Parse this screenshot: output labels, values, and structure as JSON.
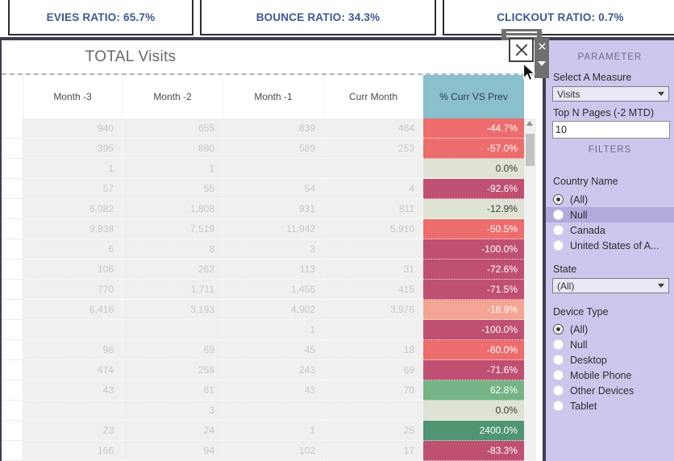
{
  "kpis": [
    {
      "label": "EVIES RATIO: 65.7%"
    },
    {
      "label": "BOUNCE RATIO: 34.3%"
    },
    {
      "label": "CLICKOUT RATIO: 0.7%"
    }
  ],
  "panel": {
    "title": "TOTAL Visits",
    "columns": [
      "Month -3",
      "Month -2",
      "Month -1",
      "Curr Month",
      "% Curr VS Prev"
    ],
    "rows": [
      {
        "m3": "940",
        "m2": "655",
        "m1": "839",
        "curr": "464",
        "pct": "-44.7%",
        "tone": "salmon"
      },
      {
        "m3": "395",
        "m2": "880",
        "m1": "589",
        "curr": "253",
        "pct": "-57.0%",
        "tone": "salmon"
      },
      {
        "m3": "1",
        "m2": "1",
        "m1": "",
        "curr": "",
        "pct": "0.0%",
        "tone": "sage"
      },
      {
        "m3": "57",
        "m2": "55",
        "m1": "54",
        "curr": "4",
        "pct": "-92.6%",
        "tone": "crimson"
      },
      {
        "m3": "6,082",
        "m2": "1,808",
        "m1": "931",
        "curr": "811",
        "pct": "-12.9%",
        "tone": "sage"
      },
      {
        "m3": "9,838",
        "m2": "7,519",
        "m1": "11,942",
        "curr": "5,910",
        "pct": "-50.5%",
        "tone": "salmon"
      },
      {
        "m3": "6",
        "m2": "8",
        "m1": "3",
        "curr": "",
        "pct": "-100.0%",
        "tone": "crimson"
      },
      {
        "m3": "106",
        "m2": "262",
        "m1": "113",
        "curr": "31",
        "pct": "-72.6%",
        "tone": "crimson"
      },
      {
        "m3": "770",
        "m2": "1,711",
        "m1": "1,456",
        "curr": "415",
        "pct": "-71.5%",
        "tone": "crimson"
      },
      {
        "m3": "6,416",
        "m2": "3,193",
        "m1": "4,902",
        "curr": "3,976",
        "pct": "-18.9%",
        "tone": "peach"
      },
      {
        "m3": "",
        "m2": "",
        "m1": "1",
        "curr": "",
        "pct": "-100.0%",
        "tone": "crimson"
      },
      {
        "m3": "96",
        "m2": "69",
        "m1": "45",
        "curr": "18",
        "pct": "-60.0%",
        "tone": "salmon"
      },
      {
        "m3": "474",
        "m2": "258",
        "m1": "243",
        "curr": "69",
        "pct": "-71.6%",
        "tone": "crimson"
      },
      {
        "m3": "43",
        "m2": "61",
        "m1": "43",
        "curr": "70",
        "pct": "62.8%",
        "tone": "green"
      },
      {
        "m3": "",
        "m2": "3",
        "m1": "",
        "curr": "",
        "pct": "0.0%",
        "tone": "sage"
      },
      {
        "m3": "23",
        "m2": "24",
        "m1": "1",
        "curr": "25",
        "pct": "2400.0%",
        "tone": "dkgreen"
      },
      {
        "m3": "166",
        "m2": "94",
        "m1": "102",
        "curr": "17",
        "pct": "-83.3%",
        "tone": "crimson"
      }
    ]
  },
  "sidebar": {
    "parameter_header": "PARAMETER",
    "select_measure_label": "Select A Measure",
    "measure_value": "Visits",
    "top_n_label": "Top N Pages (-2 MTD)",
    "top_n_value": "10",
    "filters_header": "FILTERS",
    "country_label": "Country Name",
    "country_options": [
      {
        "label": "(All)",
        "selected": true,
        "highlighted": false
      },
      {
        "label": "Null",
        "selected": false,
        "highlighted": true
      },
      {
        "label": "Canada",
        "selected": false,
        "highlighted": false
      },
      {
        "label": "United States of A...",
        "selected": false,
        "highlighted": false
      }
    ],
    "state_label": "State",
    "state_value": "(All)",
    "device_label": "Device Type",
    "device_options": [
      {
        "label": "(All)",
        "selected": true,
        "highlighted": false
      },
      {
        "label": "Null",
        "selected": false,
        "highlighted": false
      },
      {
        "label": "Desktop",
        "selected": false,
        "highlighted": false
      },
      {
        "label": "Mobile Phone",
        "selected": false,
        "highlighted": false
      },
      {
        "label": "Other Devices",
        "selected": false,
        "highlighted": false
      },
      {
        "label": "Tablet",
        "selected": false,
        "highlighted": false
      }
    ]
  },
  "colors": {
    "header_teal": "#8abfcc",
    "decline_strong": "#bf5071",
    "decline": "#ed6d6c",
    "decline_mild": "#f3a492",
    "neutral": "#dfe3d3",
    "growth": "#76b485",
    "growth_strong": "#4f9572",
    "sidebar_bg": "#cdc7ee",
    "sidebar_highlight": "#b3aadb",
    "kpi_text": "#3e5695",
    "panel_border": "#3c3e52"
  }
}
